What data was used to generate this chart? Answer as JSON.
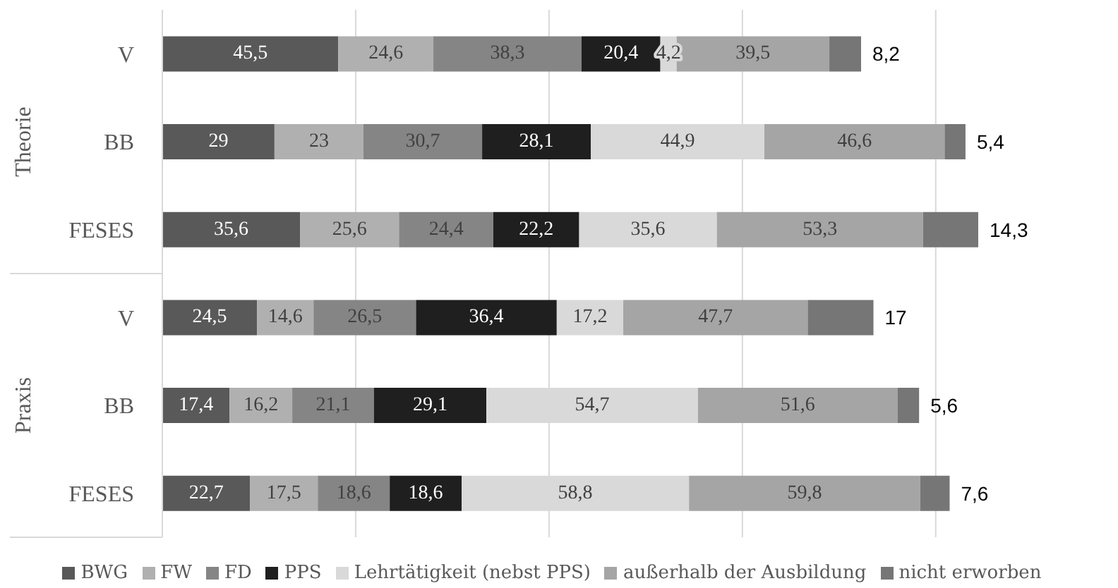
{
  "chart_data": {
    "type": "bar",
    "orientation": "horizontal",
    "stacked": true,
    "categories": [
      "V",
      "BB",
      "FESES",
      "V",
      "BB",
      "FESES"
    ],
    "annotations": [
      "Theorie",
      "Praxis"
    ],
    "series": [
      {
        "name": "BWG",
        "color": "#595959",
        "values": [
          45.5,
          29,
          35.6,
          24.5,
          17.4,
          22.7
        ],
        "value_labels": [
          "45,5",
          "29",
          "35,6",
          "24,5",
          "17,4",
          "22,7"
        ]
      },
      {
        "name": "FW",
        "color": "#b0b0b0",
        "values": [
          24.6,
          23,
          25.6,
          14.6,
          16.2,
          17.5
        ],
        "value_labels": [
          "24,6",
          "23",
          "25,6",
          "14,6",
          "16,2",
          "17,5"
        ]
      },
      {
        "name": "FD",
        "color": "#858585",
        "values": [
          38.3,
          30.7,
          24.4,
          26.5,
          21.1,
          18.6
        ],
        "value_labels": [
          "38,3",
          "30,7",
          "24,4",
          "26,5",
          "21,1",
          "18,6"
        ]
      },
      {
        "name": "PPS",
        "color": "#1f1f1f",
        "values": [
          20.4,
          28.1,
          22.2,
          36.4,
          29.1,
          18.6
        ],
        "value_labels": [
          "20,4",
          "28,1",
          "22,2",
          "36,4",
          "29,1",
          "18,6"
        ]
      },
      {
        "name": "Lehrtätigkeit (nebst PPS)",
        "color": "#d9d9d9",
        "values": [
          4.2,
          44.9,
          35.6,
          17.2,
          54.7,
          58.8
        ],
        "value_labels": [
          "4,2",
          "44,9",
          "35,6",
          "17,2",
          "54,7",
          "58,8"
        ]
      },
      {
        "name": "außerhalb der Ausbildung",
        "color": "#a5a5a5",
        "values": [
          39.5,
          46.6,
          53.3,
          47.7,
          51.6,
          59.8
        ],
        "value_labels": [
          "39,5",
          "46,6",
          "53,3",
          "47,7",
          "51,6",
          "59,8"
        ]
      },
      {
        "name": "nicht erworben",
        "color": "#767676",
        "values": [
          8.2,
          5.4,
          14.3,
          17,
          5.6,
          7.6
        ],
        "value_labels": [
          "8,2",
          "5,4",
          "14,3",
          "17",
          "5,6",
          "7,6"
        ]
      }
    ],
    "xticks": [
      {
        "value": 0,
        "label": null
      },
      {
        "value": 50,
        "label": null
      },
      {
        "value": 100,
        "label": null
      },
      {
        "value": 150,
        "label": null
      },
      {
        "value": 200,
        "label": null
      }
    ],
    "grid": "x",
    "tick_labels": "y",
    "legend": "bottom"
  }
}
